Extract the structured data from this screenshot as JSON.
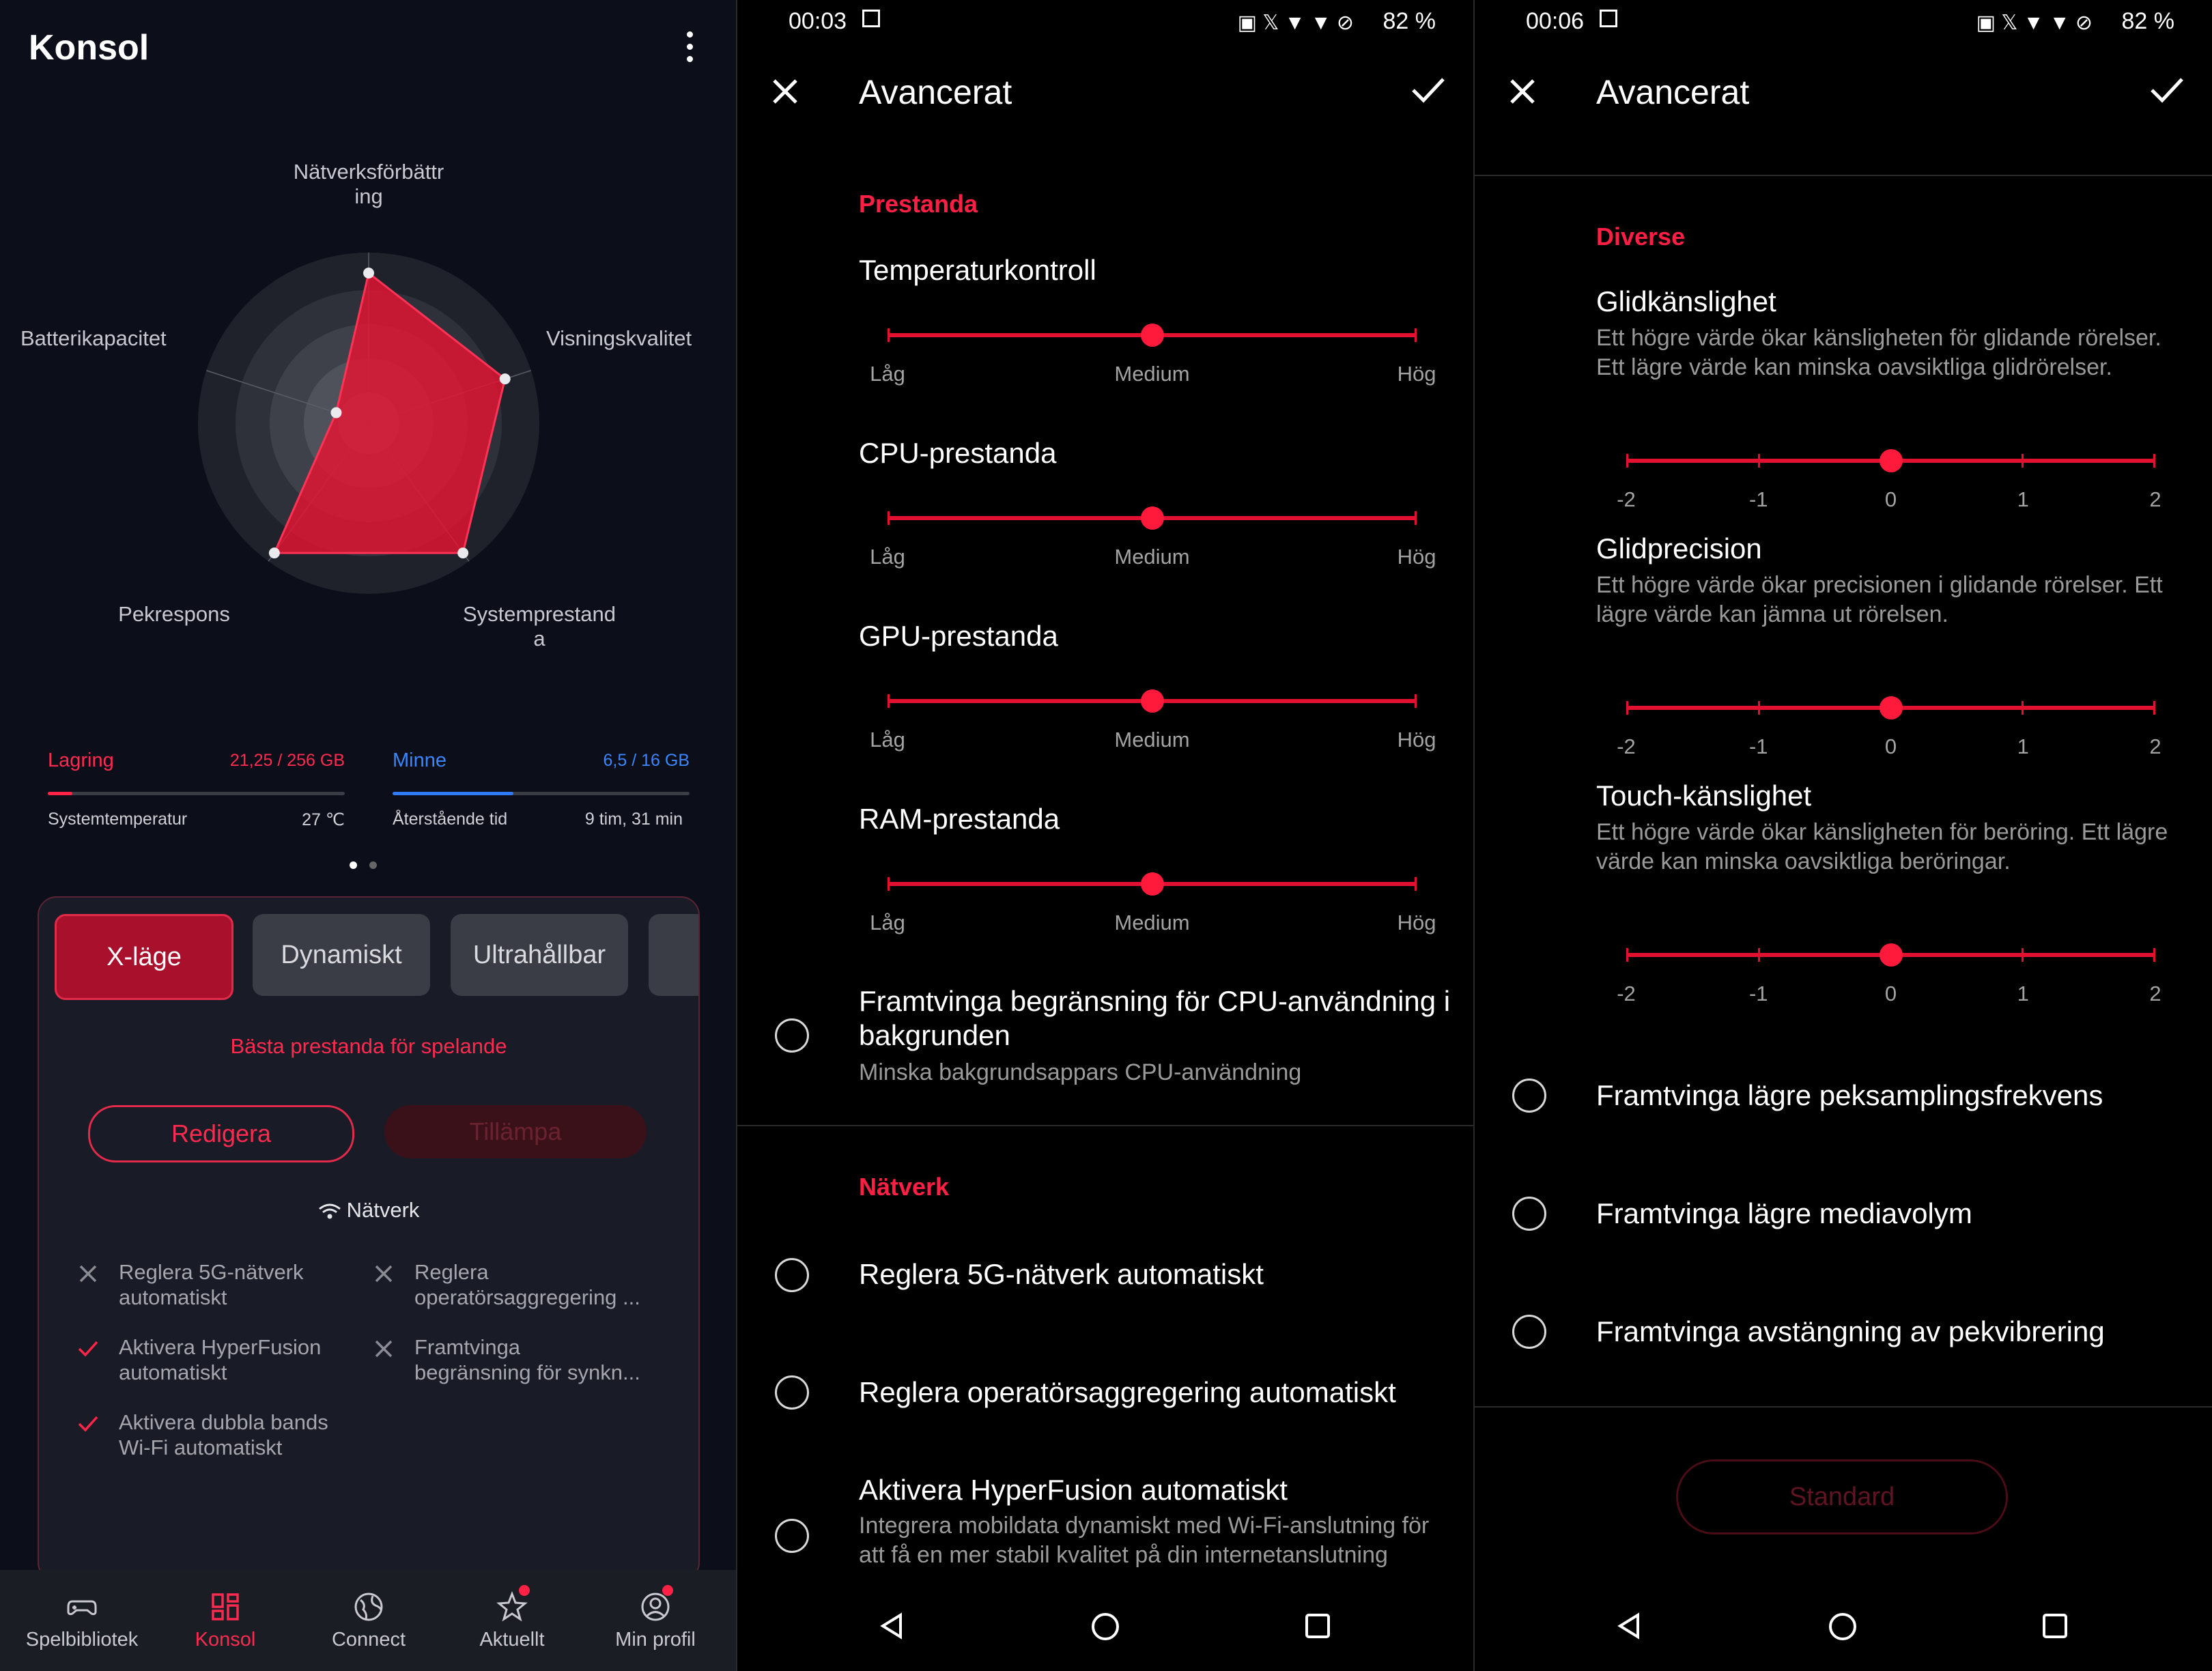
{
  "panel1": {
    "title": "Konsol",
    "radar": {
      "labels": {
        "top": "Nätverksförbättr\ning",
        "right": "Visningskvalitet",
        "bottom_right": "Systemprestand\na",
        "bottom_left": "Pekrespons",
        "left": "Batterikapacitet"
      },
      "values": {
        "top": 0.88,
        "right": 0.84,
        "bottom_right": 0.94,
        "bottom_left": 0.94,
        "left": 0.2
      }
    },
    "storage": {
      "label": "Lagring",
      "value": "21,25 / 256 GB",
      "fill": 0.083,
      "color": "#ff2448"
    },
    "memory": {
      "label": "Minne",
      "value": "6,5 / 16 GB",
      "fill": 0.406,
      "color": "#2f7bf5"
    },
    "temp": {
      "label": "Systemtemperatur",
      "value": "27 ℃"
    },
    "remaining": {
      "label": "Återstående tid",
      "value": "9 tim, 31 min"
    },
    "modes": [
      "X-läge",
      "Dynamiskt",
      "Ultrahållbar"
    ],
    "mode_subtitle": "Bästa prestanda för spelande",
    "edit_label": "Redigera",
    "apply_label": "Tillämpa",
    "network_label": "Nätverk",
    "features": [
      {
        "text": "Reglera 5G-nätverk\nautomatiskt",
        "on": false
      },
      {
        "text": "Reglera\noperatörsaggregering ...",
        "on": false
      },
      {
        "text": "Aktivera HyperFusion\nautomatiskt",
        "on": true
      },
      {
        "text": "Framtvinga\nbegränsning för synkn...",
        "on": false
      },
      {
        "text": "Aktivera dubbla bands\nWi-Fi automatiskt",
        "on": true
      }
    ],
    "nav": [
      {
        "label": "Spelbibliotek",
        "icon": "gamepad-icon",
        "active": false,
        "dot": false
      },
      {
        "label": "Konsol",
        "icon": "dashboard-icon",
        "active": true,
        "dot": false
      },
      {
        "label": "Connect",
        "icon": "globe-icon",
        "active": false,
        "dot": false
      },
      {
        "label": "Aktuellt",
        "icon": "star-icon",
        "active": false,
        "dot": true
      },
      {
        "label": "Min profil",
        "icon": "profile-icon",
        "active": false,
        "dot": true
      }
    ]
  },
  "panel2": {
    "time": "00:03",
    "battery": "82 %",
    "title": "Avancerat",
    "section_performance": "Prestanda",
    "sliders": [
      {
        "name": "Temperaturkontroll",
        "value": 1
      },
      {
        "name": "CPU-prestanda",
        "value": 1
      },
      {
        "name": "GPU-prestanda",
        "value": 1
      },
      {
        "name": "RAM-prestanda",
        "value": 1
      }
    ],
    "slider_labels": [
      "Låg",
      "Medium",
      "Hög"
    ],
    "cpu_limit_title": "Framtvinga begränsning för CPU-användning i bakgrunden",
    "cpu_limit_desc": "Minska bakgrundsappars CPU-användning",
    "section_network": "Nätverk",
    "net_opts": [
      "Reglera 5G-nätverk automatiskt",
      "Reglera operatörsaggregering automatiskt"
    ],
    "hyper_title": "Aktivera HyperFusion automatiskt",
    "hyper_desc": "Integrera mobildata dynamiskt med Wi-Fi-anslutning för att få en mer stabil kvalitet på din internetanslutning"
  },
  "panel3": {
    "time": "00:06",
    "battery": "82 %",
    "title": "Avancerat",
    "section": "Diverse",
    "sliders": [
      {
        "name": "Glidkänslighet",
        "desc": "Ett högre värde ökar känsligheten för glidande rörelser. Ett lägre värde kan minska oavsiktliga glidrörelser.",
        "value": 0
      },
      {
        "name": "Glidprecision",
        "desc": "Ett högre värde ökar precisionen i glidande rörelser. Ett lägre värde kan jämna ut rörelsen.",
        "value": 0
      },
      {
        "name": "Touch-känslighet",
        "desc": "Ett högre värde ökar känsligheten för beröring. Ett lägre värde kan minska oavsiktliga beröringar.",
        "value": 0
      }
    ],
    "scale": [
      "-2",
      "-1",
      "0",
      "1",
      "2"
    ],
    "options": [
      "Framtvinga lägre peksamplingsfrekvens",
      "Framtvinga lägre mediavolym",
      "Framtvinga avstängning av pekvibrering"
    ],
    "default_label": "Standard"
  }
}
